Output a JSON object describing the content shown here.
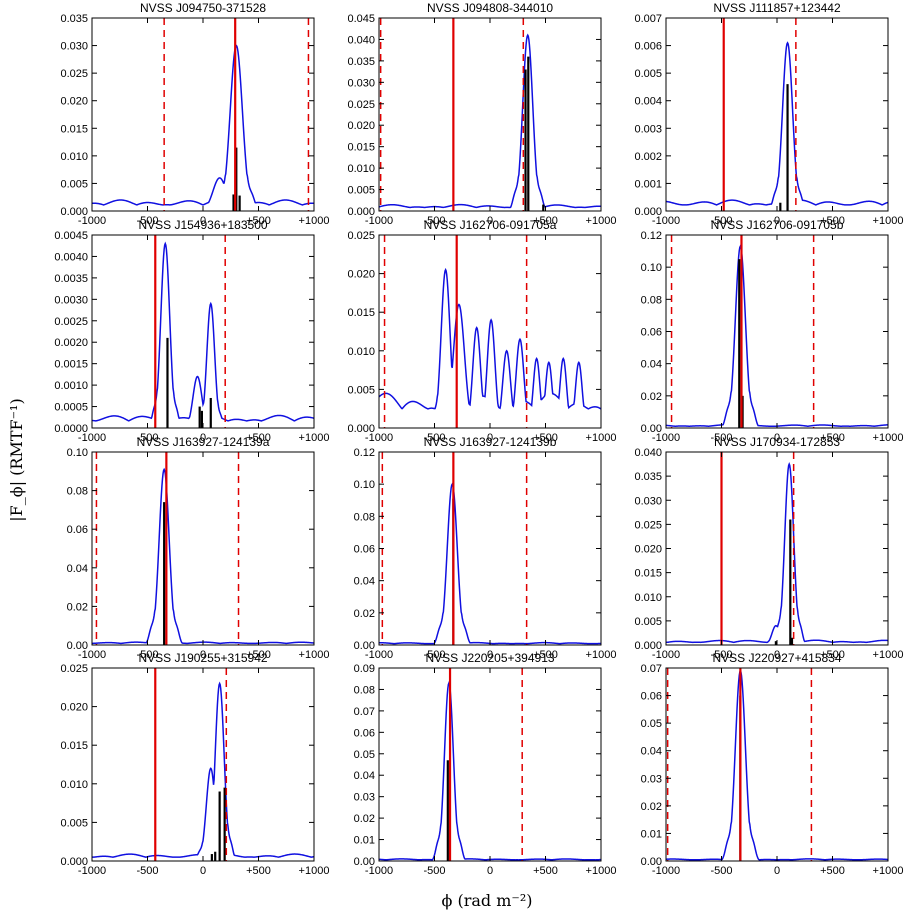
{
  "figure": {
    "ylabel": "|F_ϕ| (RMTF⁻¹)",
    "xlabel": "ϕ (rad m⁻²)"
  },
  "chart_data": [
    {
      "type": "line",
      "title": "NVSS J094750-371528",
      "xlim": [
        -1000,
        1000
      ],
      "ylim": [
        0,
        0.035
      ],
      "xticks": [
        -1000,
        -500,
        0,
        500,
        1000
      ],
      "xtick_labels": [
        "-1000",
        "-500",
        "0",
        "+500",
        "+1000"
      ],
      "yticks": [
        0.0,
        0.005,
        0.01,
        0.015,
        0.02,
        0.025,
        0.03,
        0.035
      ],
      "ytick_labels": [
        "0.000",
        "0.005",
        "0.010",
        "0.015",
        "0.020",
        "0.025",
        "0.030",
        "0.035"
      ],
      "solid_line": 290,
      "dashed_lines": [
        -350,
        950
      ],
      "peaks": [
        {
          "x": 300,
          "h": 0.03,
          "w": 55
        },
        {
          "x": 150,
          "h": 0.006,
          "w": 60
        }
      ],
      "baseline": 0.002,
      "stems": [
        {
          "x": 275,
          "h": 0.003
        },
        {
          "x": 300,
          "h": 0.0115
        },
        {
          "x": 330,
          "h": 0.0028
        }
      ]
    },
    {
      "type": "line",
      "title": "NVSS J094808-344010",
      "xlim": [
        -1000,
        1000
      ],
      "ylim": [
        0,
        0.045
      ],
      "xticks": [
        -1000,
        -500,
        0,
        500,
        1000
      ],
      "xtick_labels": [
        "-1000",
        "-500",
        "0",
        "+500",
        "+1000"
      ],
      "yticks": [
        0.0,
        0.005,
        0.01,
        0.015,
        0.02,
        0.025,
        0.03,
        0.035,
        0.04,
        0.045
      ],
      "ytick_labels": [
        "0.000",
        "0.005",
        "0.010",
        "0.015",
        "0.020",
        "0.025",
        "0.030",
        "0.035",
        "0.040",
        "0.045"
      ],
      "solid_line": -330,
      "dashed_lines": [
        -985,
        300
      ],
      "peaks": [
        {
          "x": 340,
          "h": 0.041,
          "w": 45
        }
      ],
      "baseline": 0.0015,
      "stems": [
        {
          "x": 320,
          "h": 0.033
        },
        {
          "x": 345,
          "h": 0.036
        },
        {
          "x": 480,
          "h": 0.0015
        }
      ]
    },
    {
      "type": "line",
      "title": "NVSS J111857+123442",
      "xlim": [
        -1000,
        1000
      ],
      "ylim": [
        0,
        0.007
      ],
      "xticks": [
        -1000,
        -500,
        0,
        500,
        1000
      ],
      "xtick_labels": [
        "-1000",
        "-500",
        "0",
        "+500",
        "+1000"
      ],
      "yticks": [
        0.0,
        0.001,
        0.002,
        0.003,
        0.004,
        0.005,
        0.006,
        0.007
      ],
      "ytick_labels": [
        "0.000",
        "0.001",
        "0.002",
        "0.003",
        "0.004",
        "0.005",
        "0.006",
        "0.007"
      ],
      "solid_line": -480,
      "dashed_lines": [
        170
      ],
      "peaks": [
        {
          "x": 95,
          "h": 0.0061,
          "w": 45
        }
      ],
      "baseline": 0.0004,
      "stems": [
        {
          "x": 30,
          "h": 0.0003
        },
        {
          "x": 95,
          "h": 0.0046
        }
      ]
    },
    {
      "type": "line",
      "title": "NVSS J154936+183500",
      "xlim": [
        -1000,
        1000
      ],
      "ylim": [
        0,
        0.0045
      ],
      "xticks": [
        -1000,
        -500,
        0,
        500,
        1000
      ],
      "xtick_labels": [
        "-1000",
        "-500",
        "0",
        "+500",
        "+1000"
      ],
      "yticks": [
        0.0,
        0.0005,
        0.001,
        0.0015,
        0.002,
        0.0025,
        0.003,
        0.0035,
        0.004,
        0.0045
      ],
      "ytick_labels": [
        "0.0000",
        "0.0005",
        "0.0010",
        "0.0015",
        "0.0020",
        "0.0025",
        "0.0030",
        "0.0035",
        "0.0040",
        "0.0045"
      ],
      "solid_line": -430,
      "dashed_lines": [
        200
      ],
      "peaks": [
        {
          "x": -340,
          "h": 0.0043,
          "w": 40
        },
        {
          "x": 70,
          "h": 0.0029,
          "w": 35
        },
        {
          "x": -50,
          "h": 0.0012,
          "w": 40
        }
      ],
      "baseline": 0.0003,
      "stems": [
        {
          "x": -320,
          "h": 0.0021
        },
        {
          "x": -30,
          "h": 0.0005
        },
        {
          "x": -10,
          "h": 0.0004
        },
        {
          "x": 70,
          "h": 0.0007
        }
      ]
    },
    {
      "type": "line",
      "title": "NVSS J162706-091705a",
      "xlim": [
        -1000,
        1000
      ],
      "ylim": [
        0,
        0.025
      ],
      "xticks": [
        -1000,
        -500,
        0,
        500,
        1000
      ],
      "xtick_labels": [
        "-1000",
        "-500",
        "0",
        "+500",
        "+1000"
      ],
      "yticks": [
        0.0,
        0.005,
        0.01,
        0.015,
        0.02,
        0.025
      ],
      "ytick_labels": [
        "0.000",
        "0.005",
        "0.010",
        "0.015",
        "0.020",
        "0.025"
      ],
      "solid_line": -300,
      "dashed_lines": [
        -950,
        330
      ],
      "peaks": [
        {
          "x": -400,
          "h": 0.0205,
          "w": 40
        },
        {
          "x": -280,
          "h": 0.016,
          "w": 50
        },
        {
          "x": -120,
          "h": 0.013,
          "w": 35
        },
        {
          "x": 10,
          "h": 0.014,
          "w": 35
        },
        {
          "x": 150,
          "h": 0.01,
          "w": 35
        },
        {
          "x": 270,
          "h": 0.0115,
          "w": 35
        },
        {
          "x": 420,
          "h": 0.009,
          "w": 30
        },
        {
          "x": 530,
          "h": 0.0085,
          "w": 30
        },
        {
          "x": 660,
          "h": 0.009,
          "w": 30
        },
        {
          "x": 800,
          "h": 0.0085,
          "w": 30
        }
      ],
      "baseline": 0.0045,
      "stems": []
    },
    {
      "type": "line",
      "title": "NVSS J162706-091705b",
      "xlim": [
        -1000,
        1000
      ],
      "ylim": [
        0,
        0.12
      ],
      "xticks": [
        -1000,
        -500,
        0,
        500,
        1000
      ],
      "xtick_labels": [
        "-1000",
        "-500",
        "0",
        "+500",
        "+1000"
      ],
      "yticks": [
        0.0,
        0.02,
        0.04,
        0.06,
        0.08,
        0.1,
        0.12
      ],
      "ytick_labels": [
        "0.00",
        "0.02",
        "0.04",
        "0.06",
        "0.08",
        "0.10",
        "0.12"
      ],
      "solid_line": -320,
      "dashed_lines": [
        -950,
        330
      ],
      "peaks": [
        {
          "x": -330,
          "h": 0.113,
          "w": 45
        }
      ],
      "baseline": 0.002,
      "stems": [
        {
          "x": -340,
          "h": 0.105
        },
        {
          "x": -310,
          "h": 0.02
        }
      ]
    },
    {
      "type": "line",
      "title": "NVSS J163927-124139a",
      "xlim": [
        -1000,
        1000
      ],
      "ylim": [
        0,
        0.1
      ],
      "xticks": [
        -1000,
        -500,
        0,
        500,
        1000
      ],
      "xtick_labels": [
        "-1000",
        "-500",
        "0",
        "+500",
        "+1000"
      ],
      "yticks": [
        0.0,
        0.02,
        0.04,
        0.06,
        0.08,
        0.1
      ],
      "ytick_labels": [
        "0.00",
        "0.02",
        "0.04",
        "0.06",
        "0.08",
        "0.10"
      ],
      "solid_line": -330,
      "dashed_lines": [
        -960,
        320
      ],
      "peaks": [
        {
          "x": -350,
          "h": 0.091,
          "w": 45
        }
      ],
      "baseline": 0.0015,
      "stems": [
        {
          "x": -350,
          "h": 0.074
        }
      ]
    },
    {
      "type": "line",
      "title": "NVSS J163927-124139b",
      "xlim": [
        -1000,
        1000
      ],
      "ylim": [
        0,
        0.12
      ],
      "xticks": [
        -1000,
        -500,
        0,
        500,
        1000
      ],
      "xtick_labels": [
        "-1000",
        "-500",
        "0",
        "+500",
        "+1000"
      ],
      "yticks": [
        0.0,
        0.02,
        0.04,
        0.06,
        0.08,
        0.1,
        0.12
      ],
      "ytick_labels": [
        "0.00",
        "0.02",
        "0.04",
        "0.06",
        "0.08",
        "0.10",
        "0.12"
      ],
      "solid_line": -330,
      "dashed_lines": [
        -970,
        330
      ],
      "peaks": [
        {
          "x": -340,
          "h": 0.1,
          "w": 45
        }
      ],
      "baseline": 0.0015,
      "stems": [
        {
          "x": -330,
          "h": 0.091
        }
      ]
    },
    {
      "type": "line",
      "title": "NVSS J170934-172853",
      "xlim": [
        -1000,
        1000
      ],
      "ylim": [
        0,
        0.04
      ],
      "xticks": [
        -1000,
        -500,
        0,
        500,
        1000
      ],
      "xtick_labels": [
        "-1000",
        "-500",
        "0",
        "+500",
        "+1000"
      ],
      "yticks": [
        0.0,
        0.005,
        0.01,
        0.015,
        0.02,
        0.025,
        0.03,
        0.035,
        0.04
      ],
      "ytick_labels": [
        "0.000",
        "0.005",
        "0.010",
        "0.015",
        "0.020",
        "0.025",
        "0.030",
        "0.035",
        "0.040"
      ],
      "solid_line": -500,
      "dashed_lines": [
        150
      ],
      "peaks": [
        {
          "x": 110,
          "h": 0.0375,
          "w": 40
        },
        {
          "x": -10,
          "h": 0.004,
          "w": 35
        }
      ],
      "baseline": 0.001,
      "stems": [
        {
          "x": 120,
          "h": 0.026
        },
        {
          "x": 135,
          "h": 0.0015
        },
        {
          "x": -10,
          "h": 0.0008
        }
      ]
    },
    {
      "type": "line",
      "title": "NVSS J190255+315942",
      "xlim": [
        -1000,
        1000
      ],
      "ylim": [
        0,
        0.025
      ],
      "xticks": [
        -1000,
        -500,
        0,
        500,
        1000
      ],
      "xtick_labels": [
        "-1000",
        "-500",
        "0",
        "+500",
        "+1000"
      ],
      "yticks": [
        0.0,
        0.005,
        0.01,
        0.015,
        0.02,
        0.025
      ],
      "ytick_labels": [
        "0.000",
        "0.005",
        "0.010",
        "0.015",
        "0.020",
        "0.025"
      ],
      "solid_line": -430,
      "dashed_lines": [
        210
      ],
      "peaks": [
        {
          "x": 150,
          "h": 0.023,
          "w": 40
        },
        {
          "x": 70,
          "h": 0.012,
          "w": 40
        }
      ],
      "baseline": 0.0009,
      "stems": [
        {
          "x": 80,
          "h": 0.0009
        },
        {
          "x": 110,
          "h": 0.0012
        },
        {
          "x": 150,
          "h": 0.009
        },
        {
          "x": 195,
          "h": 0.0095
        }
      ]
    },
    {
      "type": "line",
      "title": "NVSS J220205+394913",
      "xlim": [
        -1000,
        1000
      ],
      "ylim": [
        0,
        0.09
      ],
      "xticks": [
        -1000,
        -500,
        0,
        500,
        1000
      ],
      "xtick_labels": [
        "-1000",
        "-500",
        "0",
        "+500",
        "+1000"
      ],
      "yticks": [
        0.0,
        0.01,
        0.02,
        0.03,
        0.04,
        0.05,
        0.06,
        0.07,
        0.08,
        0.09
      ],
      "ytick_labels": [
        "0.00",
        "0.01",
        "0.02",
        "0.03",
        "0.04",
        "0.05",
        "0.06",
        "0.07",
        "0.08",
        "0.09"
      ],
      "solid_line": -360,
      "dashed_lines": [
        290
      ],
      "peaks": [
        {
          "x": -370,
          "h": 0.083,
          "w": 40
        }
      ],
      "baseline": 0.001,
      "stems": [
        {
          "x": -380,
          "h": 0.047
        }
      ]
    },
    {
      "type": "line",
      "title": "NVSS J220927+415834",
      "xlim": [
        -1000,
        1000
      ],
      "ylim": [
        0,
        0.07
      ],
      "xticks": [
        -1000,
        -500,
        0,
        500,
        1000
      ],
      "xtick_labels": [
        "-1000",
        "-500",
        "0",
        "+500",
        "+1000"
      ],
      "yticks": [
        0.0,
        0.01,
        0.02,
        0.03,
        0.04,
        0.05,
        0.06,
        0.07
      ],
      "ytick_labels": [
        "0.00",
        "0.01",
        "0.02",
        "0.03",
        "0.04",
        "0.05",
        "0.06",
        "0.07"
      ],
      "solid_line": -330,
      "dashed_lines": [
        -985,
        310
      ],
      "peaks": [
        {
          "x": -330,
          "h": 0.069,
          "w": 45
        }
      ],
      "baseline": 0.0008,
      "stems": [
        {
          "x": -330,
          "h": 0.06
        }
      ]
    }
  ]
}
